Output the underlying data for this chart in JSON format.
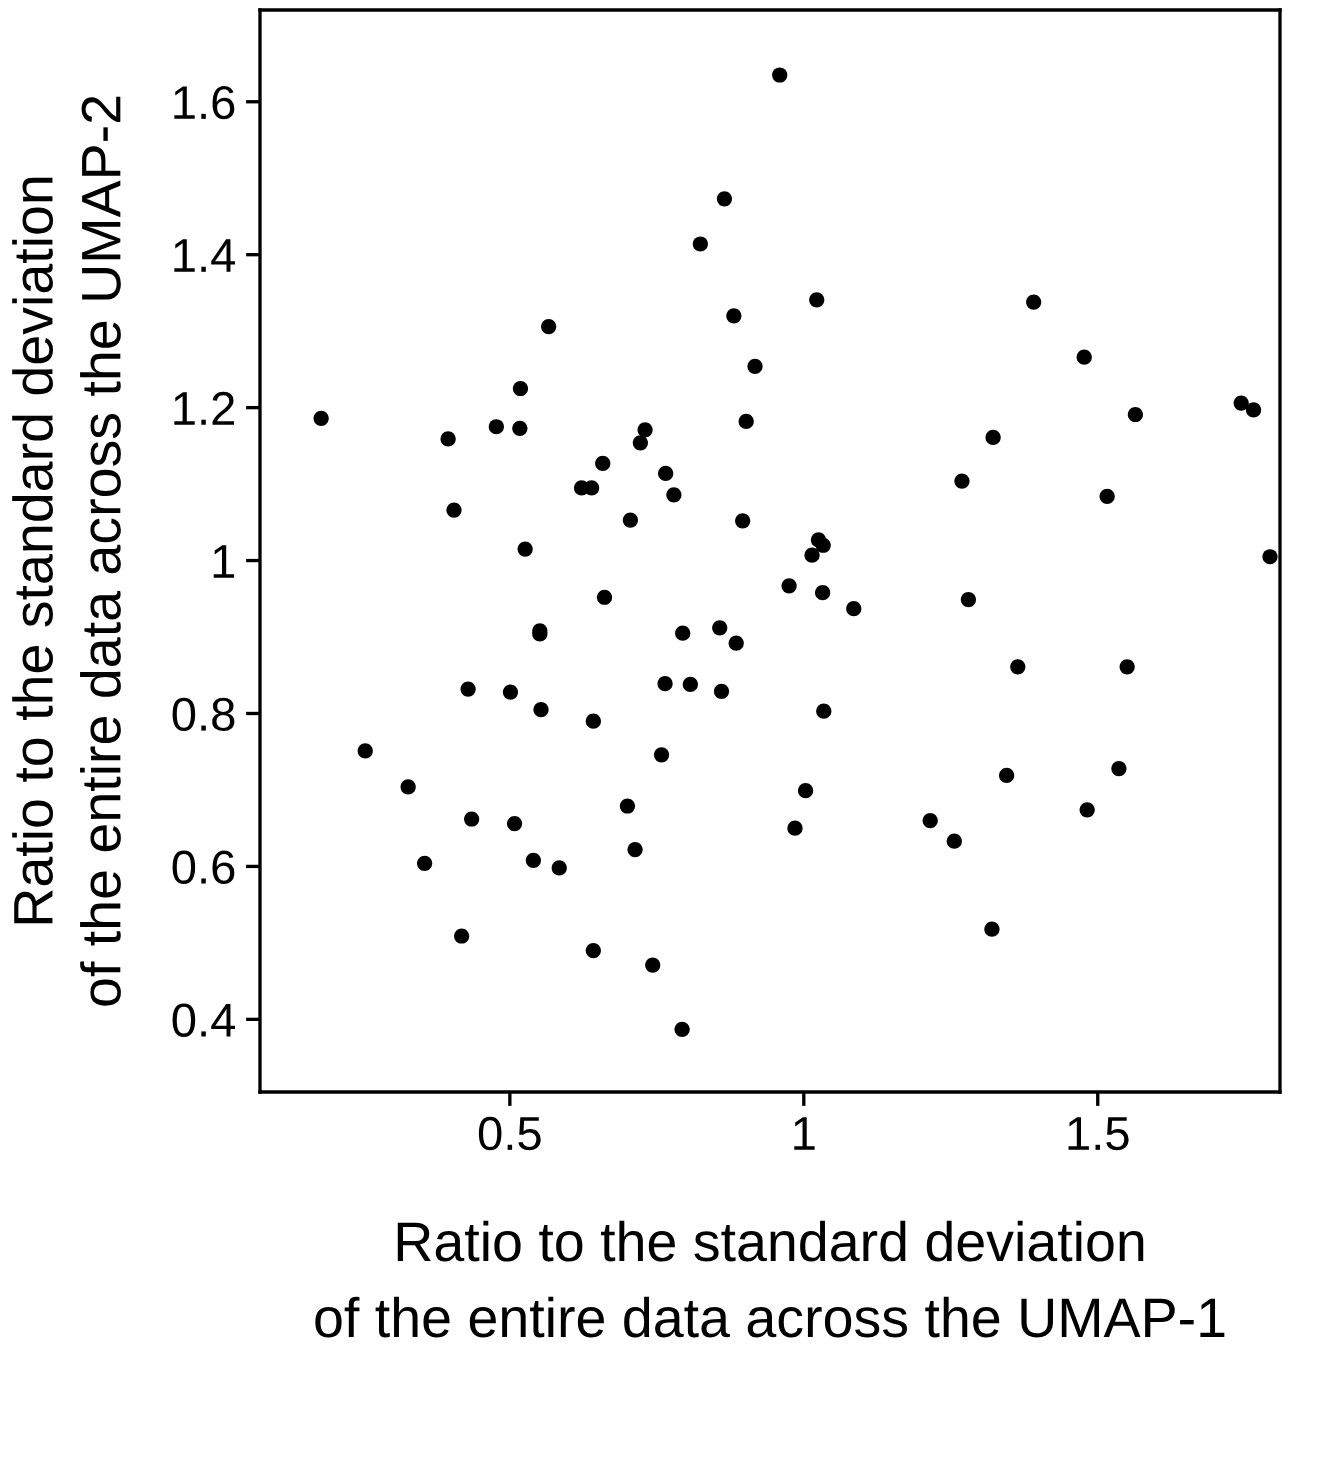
{
  "chart_data": {
    "type": "scatter",
    "xlabel": "Ratio to the standard deviation\nof the entire data across the UMAP-1",
    "ylabel": "Ratio to the standard deviation\nof the entire data across the UMAP-2",
    "x": [
      0.959,
      0.865,
      0.824,
      0.566,
      0.881,
      0.917,
      0.179,
      0.518,
      0.477,
      0.517,
      0.395,
      0.902,
      0.73,
      0.722,
      0.658,
      0.765,
      0.779,
      0.622,
      0.639,
      0.405,
      0.705,
      0.896,
      1.022,
      1.391,
      1.477,
      1.564,
      1.744,
      1.765,
      1.322,
      1.269,
      1.516,
      1.025,
      1.033,
      0.526,
      0.661,
      0.551,
      0.551,
      0.794,
      0.857,
      0.885,
      0.429,
      0.501,
      0.553,
      0.764,
      0.807,
      0.86,
      0.642,
      0.254,
      0.758,
      0.327,
      0.435,
      0.508,
      0.7,
      0.713,
      0.355,
      0.54,
      0.584,
      0.418,
      0.642,
      0.743,
      0.793,
      1.014,
      0.975,
      1.032,
      1.085,
      1.28,
      1.793,
      1.364,
      1.55,
      1.034,
      1.345,
      1.536,
      1.003,
      1.482,
      0.985,
      1.215,
      1.256,
      1.32
    ],
    "values": [
      1.635,
      1.473,
      1.414,
      1.306,
      1.32,
      1.254,
      1.186,
      1.225,
      1.175,
      1.173,
      1.159,
      1.182,
      1.171,
      1.154,
      1.127,
      1.114,
      1.086,
      1.095,
      1.095,
      1.066,
      1.053,
      1.052,
      1.341,
      1.338,
      1.266,
      1.191,
      1.206,
      1.197,
      1.161,
      1.104,
      1.084,
      1.027,
      1.02,
      1.015,
      0.952,
      0.908,
      0.904,
      0.905,
      0.912,
      0.892,
      0.832,
      0.828,
      0.805,
      0.839,
      0.838,
      0.829,
      0.79,
      0.751,
      0.746,
      0.704,
      0.662,
      0.656,
      0.679,
      0.622,
      0.604,
      0.608,
      0.598,
      0.509,
      0.49,
      0.471,
      0.387,
      1.007,
      0.967,
      0.958,
      0.937,
      0.949,
      1.005,
      0.861,
      0.861,
      0.803,
      0.719,
      0.728,
      0.699,
      0.674,
      0.65,
      0.66,
      0.633,
      0.518
    ],
    "color": "#000000",
    "marker": "circle",
    "grid": false,
    "legend": false,
    "xlim": [
      0.075,
      1.81
    ],
    "ylim": [
      0.305,
      1.72
    ],
    "xticks": [
      0.5,
      1,
      1.5
    ],
    "yticks": [
      0.4,
      0.6,
      0.8,
      1,
      1.2,
      1.4,
      1.6
    ]
  }
}
